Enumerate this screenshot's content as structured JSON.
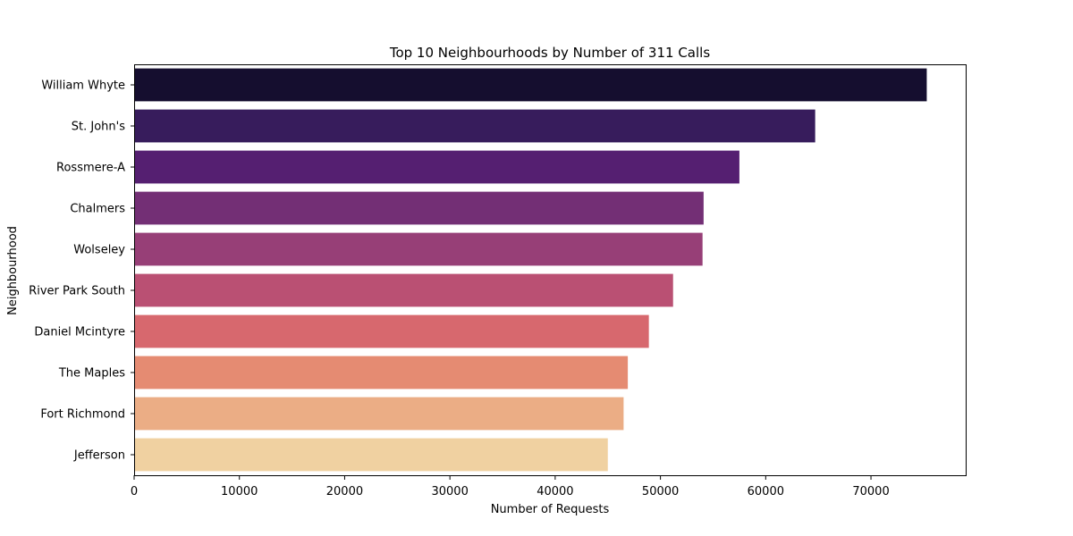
{
  "chart_data": {
    "type": "bar",
    "orientation": "horizontal",
    "title": "Top 10 Neighbourhoods by Number of 311 Calls",
    "xlabel": "Number of Requests",
    "ylabel": "Neighbourhood",
    "categories": [
      "William Whyte",
      "St. John's",
      "Rossmere-A",
      "Chalmers",
      "Wolseley",
      "River Park South",
      "Daniel Mcintyre",
      "The Maples",
      "Fort Richmond",
      "Jefferson"
    ],
    "values": [
      75300,
      64700,
      57500,
      54100,
      54000,
      51200,
      48900,
      46900,
      46500,
      45000
    ],
    "colors": [
      "#150e2f",
      "#371c5c",
      "#551f71",
      "#732f75",
      "#973f77",
      "#ba5073",
      "#d7686e",
      "#e58b72",
      "#ebad85",
      "#f0d1a1"
    ],
    "xlim": [
      0,
      79000
    ],
    "xticks": [
      0,
      10000,
      20000,
      30000,
      40000,
      50000,
      60000,
      70000
    ],
    "grid": false,
    "legend": "none"
  }
}
